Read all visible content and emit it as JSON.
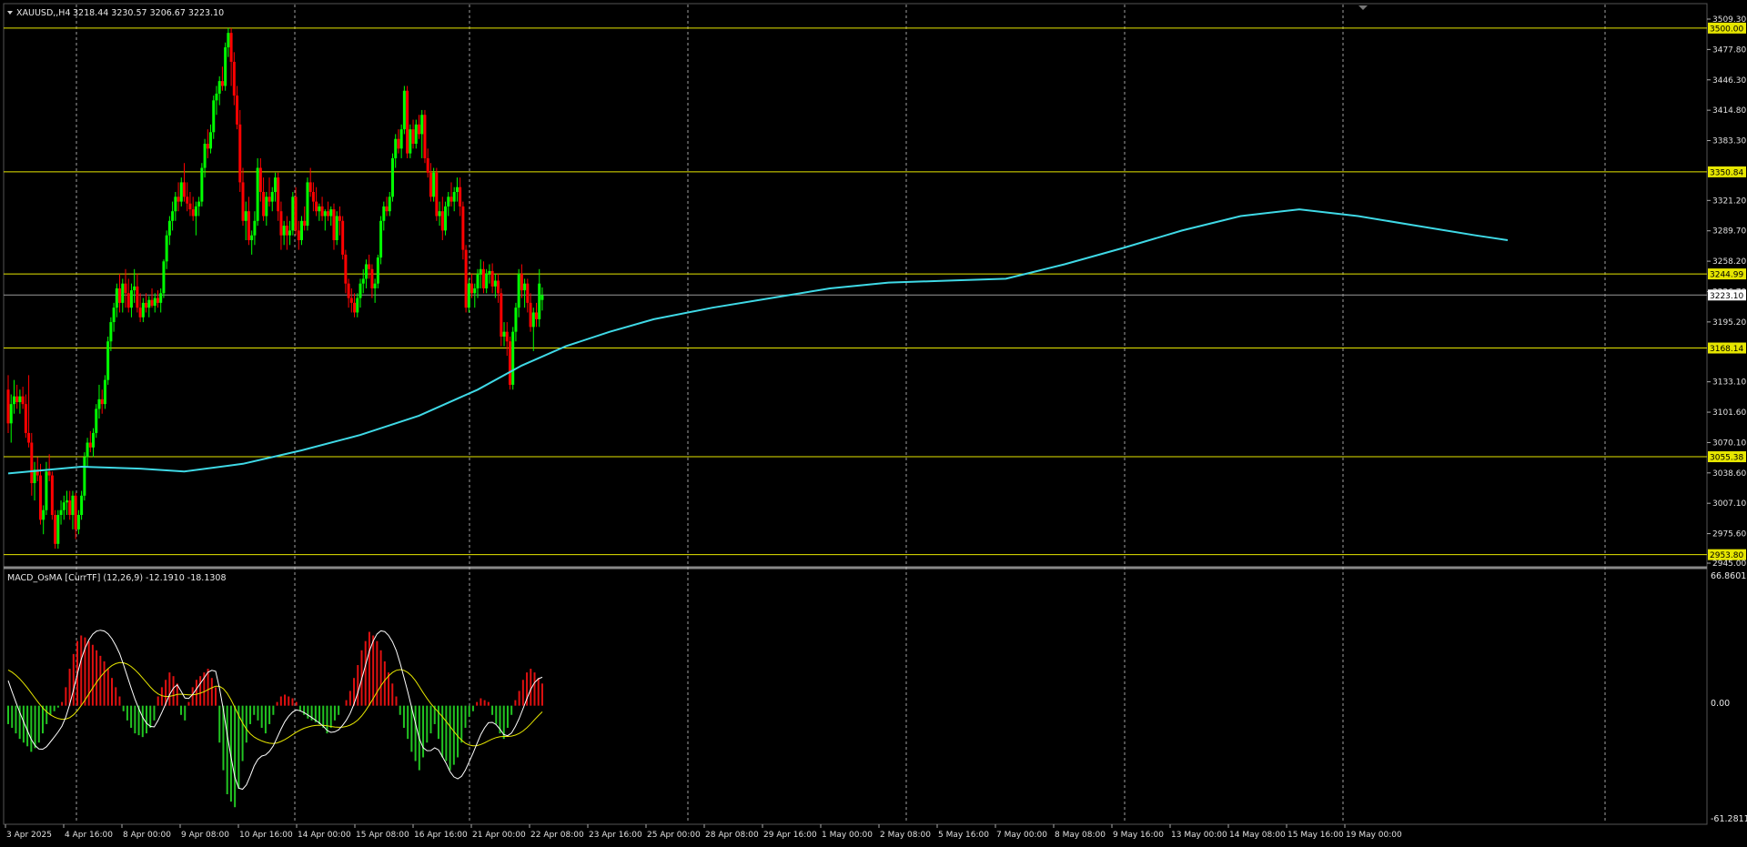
{
  "header": {
    "symbol_label": "XAUUSD,,H4",
    "ohlc": "3218.44 3230.57 3206.67 3223.10"
  },
  "indicator": {
    "label": "MACD_OsMA [CurrTF] (12,26,9) -12.1910 -18.1308",
    "scale_top": "66.8601",
    "scale_zero": "0.00",
    "scale_bottom": "-61.2811"
  },
  "colors": {
    "background": "#000000",
    "bull_candle": "#00ff00",
    "bear_candle": "#ff0000",
    "moving_average": "#3fd9e6",
    "level_line": "#e6e600",
    "hist_positive": "#e01010",
    "hist_negative": "#22c422",
    "macd_line": "#ffffff",
    "signal_line": "#e6e600",
    "grid": "#c8c8c8"
  },
  "chart_data": {
    "type": "candlestick",
    "symbol": "XAUUSD",
    "timeframe": "H4",
    "price_scale": {
      "range": [
        2945.0,
        3509.3
      ],
      "ticks": [
        "3509.30",
        "3477.80",
        "3446.30",
        "3414.80",
        "3383.30",
        "3321.20",
        "3289.70",
        "3258.20",
        "3226.70",
        "3195.20",
        "3133.10",
        "3101.60",
        "3070.10",
        "3038.60",
        "3007.10",
        "2975.60",
        "2945.00"
      ],
      "current_price": "3223.10"
    },
    "time_labels": [
      "3 Apr 2025",
      "4 Apr 16:00",
      "8 Apr 00:00",
      "9 Apr 08:00",
      "10 Apr 16:00",
      "14 Apr 00:00",
      "15 Apr 08:00",
      "16 Apr 16:00",
      "21 Apr 00:00",
      "22 Apr 08:00",
      "23 Apr 16:00",
      "25 Apr 00:00",
      "28 Apr 08:00",
      "29 Apr 16:00",
      "1 May 00:00",
      "2 May 08:00",
      "5 May 16:00",
      "7 May 00:00",
      "8 May 08:00",
      "9 May 16:00",
      "13 May 00:00",
      "14 May 08:00",
      "15 May 16:00",
      "19 May 00:00"
    ],
    "horizontal_levels": [
      "3500.00",
      "3350.84",
      "3244.99",
      "3168.14",
      "3055.38",
      "2953.80"
    ],
    "candles": [
      [
        3125,
        3140,
        3080,
        3090
      ],
      [
        3090,
        3120,
        3070,
        3110
      ],
      [
        3110,
        3135,
        3100,
        3118
      ],
      [
        3118,
        3130,
        3105,
        3112
      ],
      [
        3112,
        3125,
        3100,
        3118
      ],
      [
        3118,
        3128,
        3105,
        3110
      ],
      [
        3110,
        3120,
        3075,
        3080
      ],
      [
        3080,
        3140,
        3065,
        3070
      ],
      [
        3070,
        3080,
        3015,
        3028
      ],
      [
        3028,
        3050,
        3010,
        3042
      ],
      [
        3042,
        3055,
        3030,
        3036
      ],
      [
        3036,
        3048,
        2985,
        2990
      ],
      [
        2990,
        3005,
        2975,
        3000
      ],
      [
        3000,
        3050,
        2995,
        3040
      ],
      [
        3040,
        3058,
        3030,
        3036
      ],
      [
        3036,
        3040,
        2990,
        2995
      ],
      [
        2995,
        3000,
        2960,
        2965
      ],
      [
        2965,
        3000,
        2960,
        2995
      ],
      [
        2995,
        3010,
        2985,
        3000
      ],
      [
        3000,
        3015,
        2990,
        3008
      ],
      [
        3008,
        3020,
        2995,
        3010
      ],
      [
        3010,
        3020,
        2990,
        2995
      ],
      [
        2995,
        3020,
        2980,
        3015
      ],
      [
        3015,
        3018,
        2970,
        2980
      ],
      [
        2980,
        3000,
        2975,
        2995
      ],
      [
        2995,
        3020,
        2990,
        3015
      ],
      [
        3015,
        3060,
        3010,
        3055
      ],
      [
        3055,
        3075,
        3045,
        3070
      ],
      [
        3070,
        3082,
        3060,
        3065
      ],
      [
        3065,
        3085,
        3055,
        3080
      ],
      [
        3080,
        3110,
        3075,
        3105
      ],
      [
        3105,
        3130,
        3095,
        3115
      ],
      [
        3115,
        3125,
        3100,
        3110
      ],
      [
        3110,
        3140,
        3105,
        3135
      ],
      [
        3135,
        3180,
        3130,
        3175
      ],
      [
        3175,
        3200,
        3165,
        3195
      ],
      [
        3195,
        3215,
        3185,
        3210
      ],
      [
        3210,
        3235,
        3200,
        3230
      ],
      [
        3230,
        3245,
        3205,
        3215
      ],
      [
        3215,
        3240,
        3205,
        3235
      ],
      [
        3235,
        3250,
        3210,
        3225
      ],
      [
        3225,
        3240,
        3205,
        3210
      ],
      [
        3210,
        3235,
        3200,
        3228
      ],
      [
        3228,
        3250,
        3215,
        3232
      ],
      [
        3232,
        3245,
        3205,
        3210
      ],
      [
        3210,
        3225,
        3195,
        3200
      ],
      [
        3200,
        3220,
        3195,
        3215
      ],
      [
        3215,
        3225,
        3205,
        3210
      ],
      [
        3210,
        3222,
        3200,
        3218
      ],
      [
        3218,
        3230,
        3210,
        3212
      ],
      [
        3212,
        3225,
        3205,
        3220
      ],
      [
        3220,
        3228,
        3210,
        3215
      ],
      [
        3215,
        3230,
        3205,
        3225
      ],
      [
        3225,
        3260,
        3220,
        3258
      ],
      [
        3258,
        3290,
        3250,
        3285
      ],
      [
        3285,
        3305,
        3275,
        3300
      ],
      [
        3300,
        3320,
        3290,
        3310
      ],
      [
        3310,
        3330,
        3300,
        3325
      ],
      [
        3325,
        3340,
        3310,
        3320
      ],
      [
        3320,
        3345,
        3315,
        3340
      ],
      [
        3340,
        3360,
        3320,
        3325
      ],
      [
        3325,
        3340,
        3310,
        3318
      ],
      [
        3318,
        3330,
        3305,
        3312
      ],
      [
        3312,
        3325,
        3300,
        3305
      ],
      [
        3305,
        3320,
        3285,
        3315
      ],
      [
        3315,
        3325,
        3305,
        3320
      ],
      [
        3320,
        3360,
        3315,
        3355
      ],
      [
        3355,
        3385,
        3345,
        3380
      ],
      [
        3380,
        3395,
        3365,
        3375
      ],
      [
        3375,
        3400,
        3370,
        3392
      ],
      [
        3392,
        3430,
        3385,
        3425
      ],
      [
        3425,
        3440,
        3410,
        3432
      ],
      [
        3432,
        3450,
        3420,
        3445
      ],
      [
        3445,
        3460,
        3435,
        3440
      ],
      [
        3440,
        3485,
        3435,
        3480
      ],
      [
        3480,
        3500,
        3470,
        3495
      ],
      [
        3495,
        3500,
        3440,
        3465
      ],
      [
        3465,
        3475,
        3420,
        3430
      ],
      [
        3430,
        3440,
        3395,
        3400
      ],
      [
        3400,
        3415,
        3330,
        3340
      ],
      [
        3340,
        3355,
        3295,
        3300
      ],
      [
        3300,
        3320,
        3280,
        3310
      ],
      [
        3310,
        3325,
        3275,
        3280
      ],
      [
        3280,
        3290,
        3265,
        3285
      ],
      [
        3285,
        3310,
        3275,
        3300
      ],
      [
        3300,
        3365,
        3295,
        3355
      ],
      [
        3355,
        3365,
        3320,
        3330
      ],
      [
        3330,
        3345,
        3300,
        3305
      ],
      [
        3305,
        3330,
        3295,
        3325
      ],
      [
        3325,
        3345,
        3315,
        3320
      ],
      [
        3320,
        3335,
        3310,
        3330
      ],
      [
        3330,
        3350,
        3320,
        3345
      ],
      [
        3345,
        3350,
        3300,
        3310
      ],
      [
        3310,
        3320,
        3270,
        3285
      ],
      [
        3285,
        3300,
        3275,
        3295
      ],
      [
        3295,
        3305,
        3270,
        3285
      ],
      [
        3285,
        3300,
        3275,
        3290
      ],
      [
        3290,
        3330,
        3285,
        3325
      ],
      [
        3325,
        3335,
        3285,
        3290
      ],
      [
        3290,
        3300,
        3270,
        3280
      ],
      [
        3280,
        3305,
        3275,
        3300
      ],
      [
        3300,
        3315,
        3290,
        3295
      ],
      [
        3295,
        3345,
        3290,
        3340
      ],
      [
        3340,
        3355,
        3325,
        3330
      ],
      [
        3330,
        3340,
        3310,
        3320
      ],
      [
        3320,
        3335,
        3305,
        3310
      ],
      [
        3310,
        3318,
        3300,
        3315
      ],
      [
        3315,
        3325,
        3300,
        3305
      ],
      [
        3305,
        3312,
        3290,
        3310
      ],
      [
        3310,
        3320,
        3300,
        3305
      ],
      [
        3305,
        3315,
        3295,
        3312
      ],
      [
        3312,
        3318,
        3270,
        3280
      ],
      [
        3280,
        3310,
        3275,
        3305
      ],
      [
        3305,
        3315,
        3285,
        3300
      ],
      [
        3300,
        3305,
        3260,
        3265
      ],
      [
        3265,
        3270,
        3225,
        3235
      ],
      [
        3235,
        3240,
        3210,
        3220
      ],
      [
        3220,
        3230,
        3205,
        3215
      ],
      [
        3215,
        3225,
        3200,
        3205
      ],
      [
        3205,
        3225,
        3200,
        3220
      ],
      [
        3220,
        3240,
        3210,
        3235
      ],
      [
        3235,
        3250,
        3225,
        3240
      ],
      [
        3240,
        3260,
        3230,
        3255
      ],
      [
        3255,
        3265,
        3240,
        3250
      ],
      [
        3250,
        3255,
        3220,
        3230
      ],
      [
        3230,
        3240,
        3215,
        3235
      ],
      [
        3235,
        3265,
        3230,
        3262
      ],
      [
        3262,
        3305,
        3255,
        3300
      ],
      [
        3300,
        3320,
        3290,
        3315
      ],
      [
        3315,
        3325,
        3305,
        3310
      ],
      [
        3310,
        3330,
        3305,
        3325
      ],
      [
        3325,
        3370,
        3320,
        3365
      ],
      [
        3365,
        3390,
        3355,
        3385
      ],
      [
        3385,
        3395,
        3370,
        3375
      ],
      [
        3375,
        3400,
        3365,
        3395
      ],
      [
        3395,
        3440,
        3390,
        3435
      ],
      [
        3435,
        3440,
        3365,
        3370
      ],
      [
        3370,
        3400,
        3365,
        3395
      ],
      [
        3395,
        3405,
        3375,
        3380
      ],
      [
        3380,
        3405,
        3375,
        3400
      ],
      [
        3400,
        3410,
        3385,
        3390
      ],
      [
        3390,
        3415,
        3365,
        3410
      ],
      [
        3410,
        3415,
        3360,
        3365
      ],
      [
        3365,
        3375,
        3345,
        3350
      ],
      [
        3350,
        3360,
        3320,
        3325
      ],
      [
        3325,
        3355,
        3320,
        3350
      ],
      [
        3350,
        3355,
        3300,
        3305
      ],
      [
        3305,
        3320,
        3295,
        3310
      ],
      [
        3310,
        3325,
        3280,
        3290
      ],
      [
        3290,
        3320,
        3285,
        3315
      ],
      [
        3315,
        3330,
        3305,
        3325
      ],
      [
        3325,
        3340,
        3315,
        3320
      ],
      [
        3320,
        3335,
        3310,
        3330
      ],
      [
        3330,
        3345,
        3320,
        3335
      ],
      [
        3335,
        3345,
        3305,
        3315
      ],
      [
        3315,
        3320,
        3260,
        3270
      ],
      [
        3270,
        3275,
        3205,
        3210
      ],
      [
        3210,
        3240,
        3205,
        3235
      ],
      [
        3235,
        3245,
        3220,
        3225
      ],
      [
        3225,
        3235,
        3210,
        3230
      ],
      [
        3230,
        3250,
        3220,
        3245
      ],
      [
        3245,
        3260,
        3230,
        3250
      ],
      [
        3250,
        3258,
        3225,
        3230
      ],
      [
        3230,
        3250,
        3225,
        3245
      ],
      [
        3245,
        3255,
        3235,
        3248
      ],
      [
        3248,
        3256,
        3225,
        3232
      ],
      [
        3232,
        3245,
        3220,
        3238
      ],
      [
        3238,
        3245,
        3215,
        3225
      ],
      [
        3225,
        3230,
        3170,
        3180
      ],
      [
        3180,
        3195,
        3170,
        3185
      ],
      [
        3185,
        3195,
        3160,
        3175
      ],
      [
        3175,
        3180,
        3125,
        3130
      ],
      [
        3130,
        3190,
        3125,
        3185
      ],
      [
        3185,
        3215,
        3175,
        3210
      ],
      [
        3210,
        3250,
        3200,
        3245
      ],
      [
        3245,
        3255,
        3220,
        3228
      ],
      [
        3228,
        3240,
        3210,
        3235
      ],
      [
        3235,
        3240,
        3205,
        3215
      ],
      [
        3215,
        3225,
        3185,
        3190
      ],
      [
        3190,
        3210,
        3165,
        3205
      ],
      [
        3205,
        3215,
        3190,
        3198
      ],
      [
        3198,
        3250,
        3190,
        3235
      ],
      [
        3218,
        3231,
        3207,
        3223
      ]
    ],
    "moving_average": [
      [
        0,
        3038
      ],
      [
        25,
        3045
      ],
      [
        45,
        3043
      ],
      [
        60,
        3040
      ],
      [
        80,
        3048
      ],
      [
        100,
        3062
      ],
      [
        120,
        3078
      ],
      [
        140,
        3098
      ],
      [
        160,
        3125
      ],
      [
        175,
        3150
      ],
      [
        190,
        3170
      ],
      [
        205,
        3185
      ],
      [
        220,
        3198
      ],
      [
        240,
        3210
      ],
      [
        260,
        3220
      ],
      [
        280,
        3230
      ],
      [
        300,
        3236
      ],
      [
        320,
        3238
      ],
      [
        340,
        3240
      ],
      [
        360,
        3255
      ],
      [
        380,
        3272
      ],
      [
        400,
        3290
      ],
      [
        420,
        3305
      ],
      [
        440,
        3312
      ],
      [
        460,
        3305
      ],
      [
        480,
        3295
      ],
      [
        500,
        3285
      ],
      [
        511,
        3280
      ]
    ],
    "macd": {
      "range": [
        -61.2811,
        66.8601
      ],
      "histogram": [
        -10,
        -12,
        -15,
        -18,
        -20,
        -22,
        -25,
        -23,
        -20,
        -15,
        -10,
        -5,
        -3,
        -1,
        2,
        10,
        20,
        28,
        35,
        38,
        37,
        35,
        33,
        30,
        27,
        24,
        20,
        15,
        10,
        5,
        -3,
        -8,
        -12,
        -15,
        -16,
        -17,
        -15,
        -12,
        -8,
        5,
        10,
        14,
        18,
        16,
        12,
        -5,
        -8,
        2,
        10,
        14,
        16,
        18,
        20,
        15,
        10,
        -20,
        -35,
        -48,
        -52,
        -55,
        -45,
        -30,
        -20,
        -10,
        -5,
        -8,
        -12,
        -15,
        -10,
        -5,
        2,
        5,
        6,
        5,
        4,
        2,
        -3,
        -5,
        -7,
        -8,
        -9,
        -10,
        -12,
        -15,
        -12,
        -8,
        -5,
        0,
        3,
        8,
        15,
        22,
        30,
        35,
        40,
        38,
        35,
        30,
        24,
        18,
        12,
        5,
        -5,
        -12,
        -18,
        -25,
        -30,
        -35,
        -28,
        -20,
        -15,
        -10,
        -18,
        -28,
        -30,
        -35,
        -32,
        -28,
        -20,
        -12,
        -6,
        -3,
        2,
        4,
        3,
        2,
        -5,
        -10,
        -15,
        -18,
        -12,
        -5,
        3,
        8,
        14,
        18,
        20,
        18,
        15,
        12
      ]
    }
  }
}
